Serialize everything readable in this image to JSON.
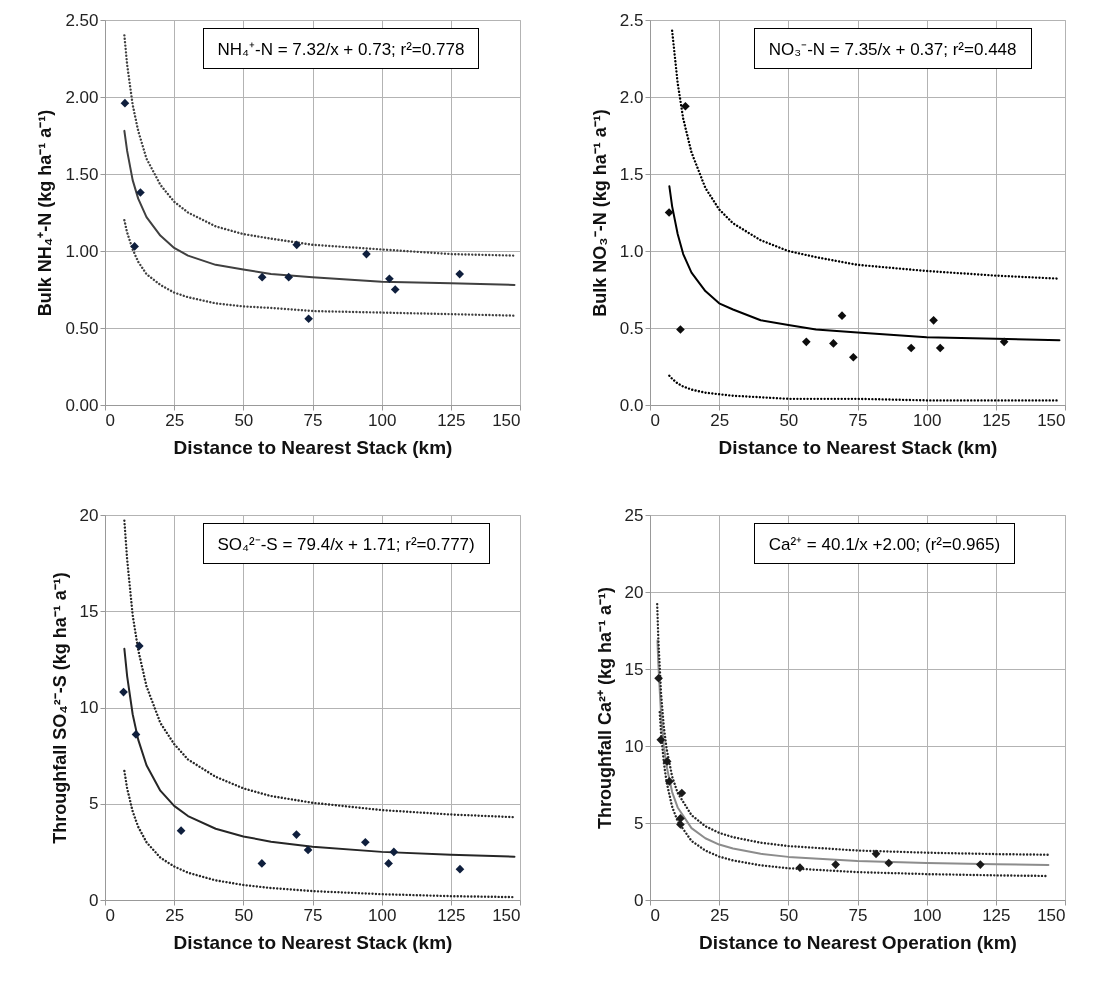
{
  "chart_data": [
    {
      "type": "scatter",
      "xlabel": "Distance to Nearest Stack (km)",
      "ylabel": "Bulk NH₄⁺-N (kg ha⁻¹ a⁻¹)",
      "annotations": [
        "NH₄⁺-N = 7.32/x + 0.73; r²=0.778"
      ],
      "xlim": [
        0,
        150
      ],
      "ylim": [
        0,
        2.5
      ],
      "xticks": [
        0,
        25,
        50,
        75,
        100,
        125,
        150
      ],
      "yticks": [
        {
          "value": 0,
          "label": "0.00"
        },
        {
          "value": 0.5,
          "label": "0.50"
        },
        {
          "value": 1,
          "label": "1.00"
        },
        {
          "value": 1.5,
          "label": "1.50"
        },
        {
          "value": 2,
          "label": "2.00"
        },
        {
          "value": 2.5,
          "label": "2.50"
        }
      ],
      "grid": true,
      "series": [
        {
          "type": "scatter",
          "marker": "diamond",
          "color": "#0f1f3d",
          "x": [
            7.2,
            12.8,
            10.7,
            56.8,
            66.4,
            69.3,
            73.6,
            94.5,
            102.8,
            104.9,
            128.2
          ],
          "values": [
            1.96,
            1.38,
            1.03,
            0.83,
            0.83,
            1.04,
            0.56,
            0.98,
            0.82,
            0.75,
            0.85
          ]
        },
        {
          "type": "line",
          "line_style": "solid",
          "color": "#404040",
          "x": [
            7,
            8,
            10,
            12,
            15,
            20,
            25,
            30,
            40,
            50,
            60,
            75,
            100,
            125,
            148
          ],
          "values": [
            1.78,
            1.65,
            1.46,
            1.34,
            1.22,
            1.1,
            1.02,
            0.97,
            0.91,
            0.88,
            0.85,
            0.83,
            0.8,
            0.79,
            0.78
          ]
        },
        {
          "type": "line",
          "line_style": "dotted",
          "color": "#404040",
          "x": [
            7,
            8,
            10,
            12,
            15,
            20,
            25,
            30,
            40,
            50,
            60,
            75,
            100,
            125,
            148
          ],
          "values": [
            2.4,
            2.21,
            1.95,
            1.78,
            1.6,
            1.43,
            1.32,
            1.25,
            1.16,
            1.11,
            1.08,
            1.04,
            1.01,
            0.98,
            0.97
          ]
        },
        {
          "type": "line",
          "line_style": "dotted",
          "color": "#404040",
          "x": [
            7,
            8,
            10,
            12,
            15,
            20,
            25,
            30,
            40,
            50,
            60,
            75,
            100,
            125,
            148
          ],
          "values": [
            1.2,
            1.12,
            1.01,
            0.93,
            0.85,
            0.78,
            0.73,
            0.7,
            0.66,
            0.64,
            0.63,
            0.61,
            0.6,
            0.59,
            0.58
          ]
        }
      ]
    },
    {
      "type": "scatter",
      "xlabel": "Distance to Nearest Stack (km)",
      "ylabel": "Bulk NO₃⁻-N (kg ha⁻¹ a⁻¹)",
      "annotations": [
        "NO₃⁻-N = 7.35/x + 0.37; r²=0.448"
      ],
      "xlim": [
        0,
        150
      ],
      "ylim": [
        0,
        2.5
      ],
      "xticks": [
        0,
        25,
        50,
        75,
        100,
        125,
        150
      ],
      "yticks": [
        {
          "value": 0,
          "label": "0.0"
        },
        0.5,
        {
          "value": 1,
          "label": "1.0"
        },
        1.5,
        {
          "value": 2,
          "label": "2.0"
        },
        2.5
      ],
      "grid": true,
      "series": [
        {
          "type": "scatter",
          "marker": "diamond",
          "color": "#0d0d0d",
          "x": [
            6.9,
            12.8,
            11.0,
            56.5,
            66.3,
            69.4,
            73.5,
            94.4,
            102.5,
            104.9,
            128.0
          ],
          "values": [
            1.25,
            1.94,
            0.49,
            0.41,
            0.4,
            0.58,
            0.31,
            0.37,
            0.55,
            0.37,
            0.41
          ]
        },
        {
          "type": "line",
          "line_style": "solid",
          "color": "#000000",
          "x": [
            7,
            8,
            10,
            12,
            15,
            20,
            25,
            30,
            40,
            50,
            60,
            75,
            100,
            125,
            148
          ],
          "values": [
            1.42,
            1.29,
            1.11,
            0.98,
            0.86,
            0.74,
            0.66,
            0.62,
            0.55,
            0.52,
            0.49,
            0.47,
            0.44,
            0.43,
            0.42
          ]
        },
        {
          "type": "line",
          "line_style": "dotted",
          "color": "#000000",
          "x": [
            8,
            10,
            12,
            15,
            20,
            25,
            30,
            40,
            50,
            60,
            75,
            100,
            125,
            148
          ],
          "values": [
            2.43,
            2.09,
            1.86,
            1.64,
            1.41,
            1.27,
            1.18,
            1.07,
            1.0,
            0.96,
            0.91,
            0.87,
            0.84,
            0.82
          ]
        },
        {
          "type": "line",
          "line_style": "dotted",
          "color": "#000000",
          "x": [
            7,
            8,
            10,
            12,
            15,
            20,
            25,
            30,
            40,
            50,
            60,
            75,
            100,
            125,
            148
          ],
          "values": [
            0.19,
            0.17,
            0.14,
            0.12,
            0.1,
            0.08,
            0.07,
            0.06,
            0.05,
            0.04,
            0.04,
            0.04,
            0.03,
            0.03,
            0.03
          ]
        }
      ]
    },
    {
      "type": "scatter",
      "xlabel": "Distance to Nearest Stack (km)",
      "ylabel": "Throughfall SO₄²⁻-S (kg ha⁻¹ a⁻¹)",
      "annotations": [
        "SO₄²⁻-S = 79.4/x + 1.71; r²=0.777)"
      ],
      "xlim": [
        0,
        150
      ],
      "ylim": [
        0,
        20
      ],
      "xticks": [
        0,
        25,
        50,
        75,
        100,
        125,
        150
      ],
      "yticks": [
        0,
        5,
        10,
        15,
        20
      ],
      "grid": true,
      "series": [
        {
          "type": "scatter",
          "marker": "diamond",
          "color": "#0f1f3d",
          "x": [
            6.7,
            12.4,
            11.2,
            27.5,
            56.7,
            69.2,
            73.4,
            94.1,
            102.5,
            104.4,
            128.3
          ],
          "values": [
            10.8,
            13.2,
            8.6,
            3.6,
            1.9,
            3.4,
            2.6,
            3.0,
            1.9,
            2.5,
            1.6
          ]
        },
        {
          "type": "line",
          "line_style": "solid",
          "color": "#262626",
          "x": [
            7,
            8,
            10,
            12,
            15,
            20,
            25,
            30,
            40,
            50,
            60,
            75,
            100,
            125,
            148
          ],
          "values": [
            13.05,
            11.63,
            9.65,
            8.33,
            7.0,
            5.68,
            4.89,
            4.36,
            3.7,
            3.3,
            3.03,
            2.77,
            2.5,
            2.35,
            2.25
          ]
        },
        {
          "type": "line",
          "line_style": "dotted",
          "color": "#262626",
          "x": [
            7,
            8,
            10,
            12,
            15,
            20,
            25,
            30,
            40,
            50,
            60,
            75,
            100,
            125,
            148
          ],
          "values": [
            19.7,
            17.7,
            14.8,
            13.0,
            11.1,
            9.2,
            8.1,
            7.3,
            6.4,
            5.8,
            5.4,
            5.05,
            4.67,
            4.44,
            4.3
          ]
        },
        {
          "type": "line",
          "line_style": "dotted",
          "color": "#262626",
          "x": [
            7,
            8,
            10,
            12,
            15,
            20,
            25,
            30,
            40,
            50,
            60,
            75,
            100,
            125,
            148
          ],
          "values": [
            6.7,
            5.8,
            4.6,
            3.8,
            3.0,
            2.2,
            1.74,
            1.42,
            1.02,
            0.78,
            0.62,
            0.46,
            0.3,
            0.2,
            0.15
          ]
        }
      ]
    },
    {
      "type": "scatter",
      "xlabel": "Distance to Nearest Operation (km)",
      "ylabel": "Throughfall Ca²⁺ (kg ha⁻¹ a⁻¹)",
      "annotations": [
        "Ca²⁺ = 40.1/x +2.00; (r²=0.965)"
      ],
      "xlim": [
        0,
        150
      ],
      "ylim": [
        0,
        25
      ],
      "xticks": [
        0,
        25,
        50,
        75,
        100,
        125,
        150
      ],
      "yticks": [
        0,
        5,
        10,
        15,
        20,
        25
      ],
      "grid": true,
      "series": [
        {
          "type": "scatter",
          "marker": "diamond",
          "color": "#1a1a1a",
          "x": [
            3.1,
            3.9,
            6.2,
            7.0,
            11.5,
            11.0,
            11.0,
            54.2,
            67.1,
            81.7,
            86.3,
            119.4
          ],
          "values": [
            14.4,
            10.4,
            9.0,
            7.7,
            6.95,
            5.3,
            4.9,
            2.1,
            2.3,
            3.0,
            2.4,
            2.3
          ]
        },
        {
          "type": "line",
          "line_style": "solid",
          "color": "#8c8c8c",
          "x": [
            2.7,
            3,
            4,
            5,
            6,
            8,
            10,
            15,
            20,
            25,
            30,
            40,
            50,
            75,
            100,
            125,
            144
          ],
          "values": [
            16.85,
            15.37,
            12.03,
            10.02,
            8.68,
            7.01,
            6.01,
            4.67,
            4.01,
            3.6,
            3.34,
            3.0,
            2.8,
            2.53,
            2.4,
            2.32,
            2.28
          ]
        },
        {
          "type": "line",
          "line_style": "dotted",
          "color": "#262626",
          "x": [
            2.6,
            3,
            4,
            5,
            6,
            8,
            10,
            15,
            20,
            25,
            30,
            40,
            50,
            75,
            100,
            125,
            144
          ],
          "values": [
            19.2,
            17.0,
            13.4,
            11.25,
            9.82,
            8.02,
            6.95,
            5.51,
            4.79,
            4.36,
            4.08,
            3.72,
            3.5,
            3.21,
            3.07,
            2.98,
            2.94
          ]
        },
        {
          "type": "line",
          "line_style": "dotted",
          "color": "#262626",
          "x": [
            3.5,
            4,
            5,
            6,
            8,
            10,
            15,
            20,
            25,
            30,
            40,
            50,
            75,
            100,
            125,
            144
          ],
          "values": [
            12.19,
            10.83,
            8.92,
            7.65,
            6.06,
            5.11,
            3.84,
            3.21,
            2.82,
            2.57,
            2.25,
            2.06,
            1.81,
            1.68,
            1.6,
            1.56
          ]
        }
      ]
    }
  ]
}
